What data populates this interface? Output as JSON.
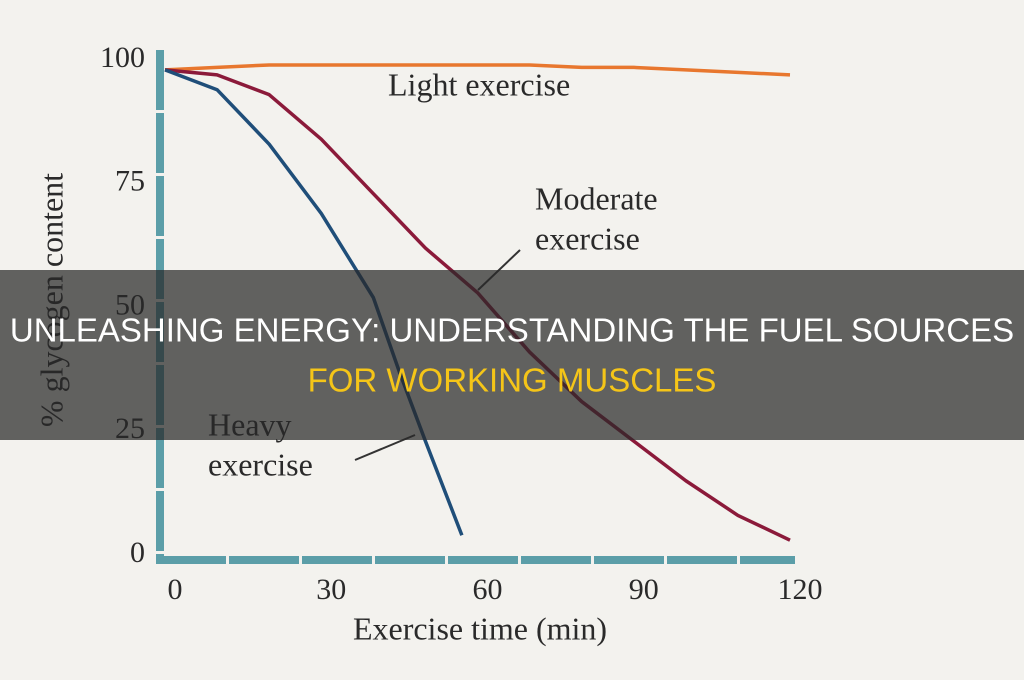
{
  "chart_data": {
    "type": "line",
    "xlabel": "Exercise time (min)",
    "ylabel": "% glycogen content",
    "xlim": [
      0,
      120
    ],
    "ylim": [
      0,
      100
    ],
    "xticks": [
      0,
      30,
      60,
      90,
      120
    ],
    "yticks": [
      0,
      25,
      50,
      75,
      100
    ],
    "series": [
      {
        "name": "Light exercise",
        "color": "#e8772e",
        "x": [
          0,
          10,
          20,
          30,
          40,
          50,
          60,
          70,
          80,
          90,
          100,
          110,
          120
        ],
        "values": [
          98,
          98.5,
          99,
          99,
          99,
          99,
          99,
          99,
          98.5,
          98.5,
          98,
          97.5,
          97
        ]
      },
      {
        "name": "Moderate exercise",
        "color": "#8b1a3a",
        "x": [
          0,
          10,
          20,
          30,
          40,
          50,
          60,
          70,
          80,
          90,
          100,
          110,
          120
        ],
        "values": [
          98,
          97,
          93,
          84,
          73,
          62,
          53,
          41,
          31,
          23,
          15,
          8,
          3
        ]
      },
      {
        "name": "Heavy exercise",
        "color": "#1f4e79",
        "x": [
          0,
          10,
          20,
          30,
          40,
          45,
          50,
          57
        ],
        "values": [
          98,
          94,
          83,
          69,
          52,
          37,
          23,
          4
        ]
      }
    ],
    "annotations": [
      {
        "lines": [
          "Light exercise"
        ]
      },
      {
        "lines": [
          "Moderate",
          "exercise"
        ]
      },
      {
        "lines": [
          "Heavy",
          "exercise"
        ]
      }
    ]
  },
  "banner": {
    "title": [
      "UNLEASHING ENERGY: UNDERSTANDING THE FUEL SOURCES",
      "FOR WORKING MUSCLES"
    ]
  }
}
